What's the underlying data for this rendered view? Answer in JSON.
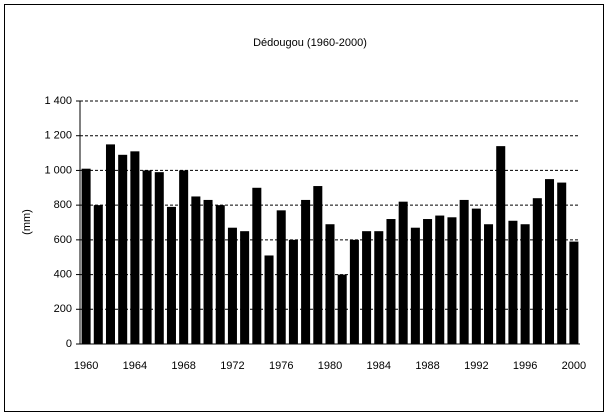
{
  "chart_data": {
    "type": "bar",
    "title": "Dédougou (1960-2000)",
    "y_label": "(mm)",
    "categories": [
      "1960",
      null,
      null,
      null,
      "1964",
      null,
      null,
      null,
      "1968",
      null,
      null,
      null,
      "1972",
      null,
      null,
      null,
      "1976",
      null,
      null,
      null,
      "1980",
      null,
      null,
      null,
      "1984",
      null,
      null,
      null,
      "1988",
      null,
      null,
      null,
      "1992",
      null,
      null,
      null,
      "1996",
      null,
      null,
      null,
      "2000"
    ],
    "values": [
      1010,
      800,
      1150,
      1090,
      1110,
      1000,
      990,
      790,
      1000,
      850,
      830,
      800,
      670,
      650,
      900,
      510,
      770,
      600,
      830,
      910,
      690,
      400,
      600,
      650,
      650,
      720,
      820,
      670,
      720,
      740,
      730,
      830,
      780,
      690,
      1140,
      710,
      690,
      840,
      950,
      930,
      590
    ],
    "color": "#000000",
    "ylim": [
      0,
      1400
    ],
    "yticks": [
      0,
      200,
      400,
      600,
      800,
      {
        "value": 1000,
        "label": "1 000"
      },
      {
        "value": 1200,
        "label": "1 200"
      },
      {
        "value": 1400,
        "label": "1 400"
      }
    ],
    "grid": true
  }
}
